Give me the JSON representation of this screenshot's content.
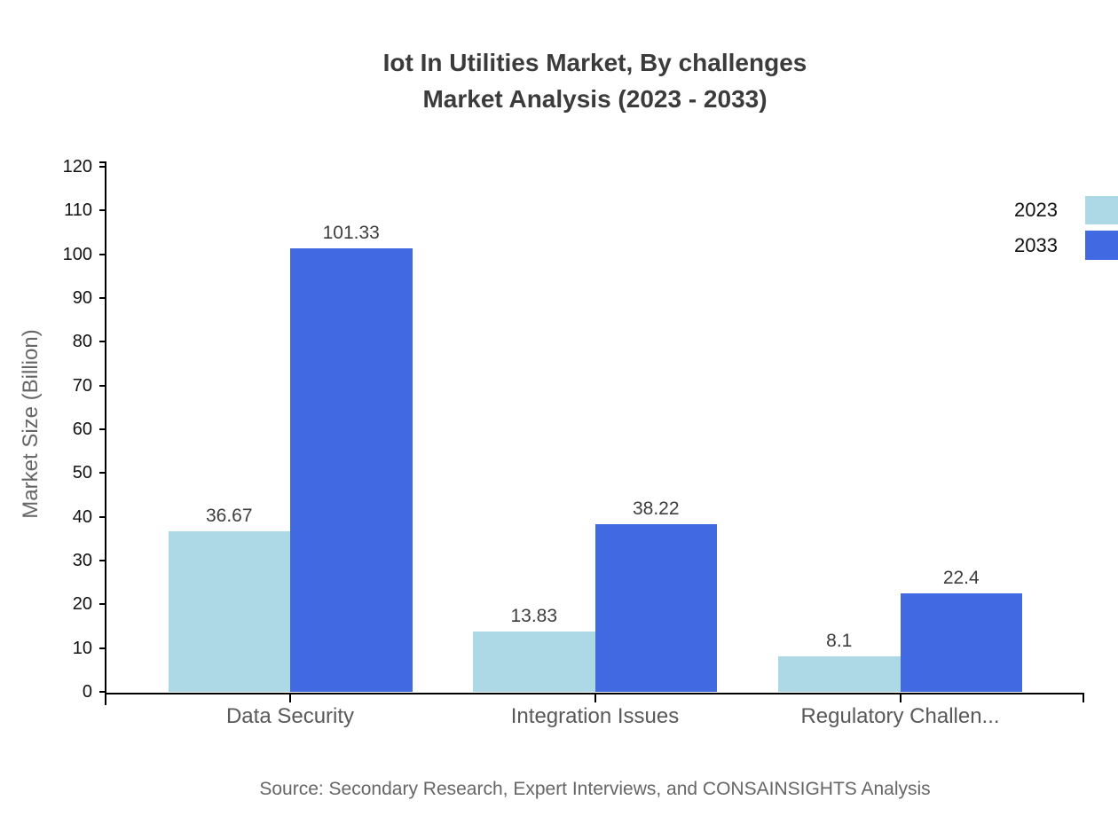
{
  "title": {
    "line1": "Iot In Utilities Market, By challenges",
    "line2": "Market Analysis (2023 - 2033)"
  },
  "source": "Source: Secondary Research, Expert Interviews, and CONSAINSIGHTS Analysis",
  "chart_data": {
    "type": "bar",
    "categories": [
      "Data Security",
      "Integration Issues",
      "Regulatory Challen..."
    ],
    "series": [
      {
        "name": "2023",
        "color": "#ADD8E6",
        "values": [
          36.67,
          13.83,
          8.1
        ]
      },
      {
        "name": "2033",
        "color": "#4169E1",
        "values": [
          101.33,
          38.22,
          22.4
        ]
      }
    ],
    "value_labels": [
      "36.67",
      "101.33",
      "13.83",
      "38.22",
      "8.1",
      "22.4"
    ],
    "ylabel": "Market Size (Billion)",
    "ylim": [
      0,
      120
    ],
    "ytick_step": 10,
    "yticks": [
      0,
      10,
      20,
      30,
      40,
      50,
      60,
      70,
      80,
      90,
      100,
      110,
      120
    ],
    "grid": false,
    "legend_position": "top-right",
    "bar_value_labels_shown": true
  }
}
